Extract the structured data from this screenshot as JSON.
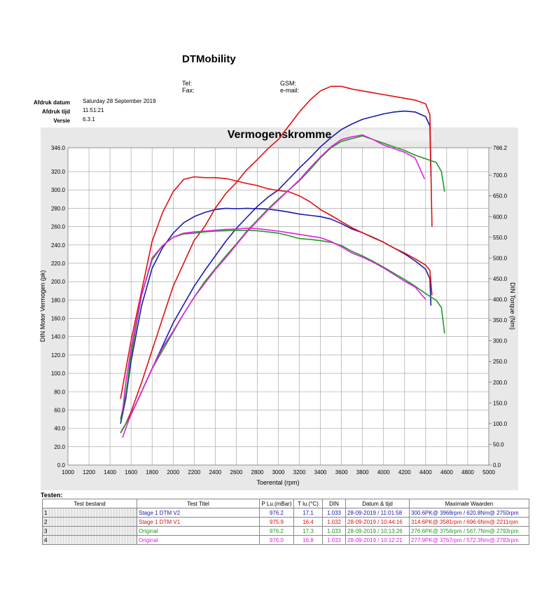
{
  "header": {
    "company": "DTMobility",
    "tel_label": "Tel:",
    "fax_label": "Fax:",
    "gsm_label": "GSM:",
    "email_label": "e-mail:"
  },
  "meta": {
    "print_date_label": "Afdruk datum",
    "print_date": "Saturday 28 September 2019",
    "print_time_label": "Afdruk tijd",
    "print_time": "11:51:21",
    "version_label": "Versie",
    "version": "6.3.1"
  },
  "chart_data": {
    "type": "line",
    "title": "Vermogenskromme",
    "xlabel": "Toerental (rpm)",
    "ylabel": "DIN Motor Vermogen (pk)",
    "y2label": "DIN Torque (Nm)",
    "xlim": [
      1000,
      5000
    ],
    "ylim": [
      0,
      346.0
    ],
    "y2lim": [
      0,
      766.2
    ],
    "x_ticks": [
      1000,
      1200,
      1400,
      1600,
      1800,
      2000,
      2200,
      2400,
      2600,
      2800,
      3000,
      3200,
      3400,
      3600,
      3800,
      4000,
      4200,
      4400,
      4600,
      4800,
      5000
    ],
    "y_ticks": [
      "0.0",
      "20.0",
      "40.0",
      "60.0",
      "80.0",
      "100.0",
      "120.0",
      "140.0",
      "160.0",
      "180.0",
      "200.0",
      "220.0",
      "240.0",
      "260.0",
      "280.0",
      "300.0",
      "320.0",
      "346.0"
    ],
    "y2_ticks": [
      "0.0",
      "50.0",
      "100.0",
      "150.0",
      "200.0",
      "250.0",
      "300.0",
      "350.0",
      "400.0",
      "450.0",
      "500.0",
      "550.0",
      "600.0",
      "650.0",
      "700.0",
      "766.2"
    ],
    "grid": true,
    "series": [
      {
        "run": "Stage 1 DTM V2",
        "kind": "power",
        "color": "#1a1aa8",
        "x": [
          1500,
          1550,
          1600,
          1700,
          1800,
          1900,
          2000,
          2100,
          2200,
          2300,
          2400,
          2500,
          2600,
          2700,
          2800,
          2900,
          3000,
          3100,
          3200,
          3300,
          3400,
          3500,
          3600,
          3700,
          3800,
          3900,
          4000,
          4100,
          4200,
          4300,
          4400,
          4440,
          4450
        ],
        "y": [
          35,
          45,
          55,
          80,
          105,
          130,
          155,
          175,
          195,
          212,
          228,
          244,
          258,
          270,
          282,
          292,
          300,
          312,
          324,
          335,
          347,
          357,
          366,
          372,
          377,
          380,
          383,
          385,
          386,
          385,
          380,
          370,
          315
        ]
      },
      {
        "run": "Stage 1 DTM V2",
        "kind": "torque",
        "color": "#1a1aa8",
        "x": [
          1500,
          1550,
          1600,
          1700,
          1800,
          1900,
          2000,
          2100,
          2200,
          2300,
          2400,
          2500,
          2600,
          2700,
          2800,
          2900,
          3000,
          3100,
          3200,
          3300,
          3400,
          3500,
          3600,
          3700,
          3800,
          3900,
          4000,
          4100,
          4200,
          4300,
          4400,
          4440,
          4450
        ],
        "y": [
          100,
          160,
          250,
          385,
          475,
          525,
          560,
          585,
          600,
          610,
          617,
          620,
          619,
          620,
          619,
          618,
          615,
          611,
          606,
          603,
          600,
          594,
          583,
          570,
          561,
          550,
          538,
          524,
          510,
          493,
          473,
          450,
          385
        ]
      },
      {
        "run": "Stage 1 DTM V1",
        "kind": "power",
        "color": "#e01010",
        "x": [
          1500,
          1550,
          1600,
          1700,
          1800,
          1900,
          2000,
          2100,
          2200,
          2300,
          2400,
          2500,
          2600,
          2700,
          2800,
          2900,
          3000,
          3100,
          3200,
          3300,
          3400,
          3500,
          3600,
          3700,
          3800,
          3900,
          4000,
          4100,
          4200,
          4300,
          4400,
          4440,
          4460
        ],
        "y": [
          35,
          45,
          58,
          90,
          125,
          160,
          195,
          220,
          245,
          260,
          280,
          296,
          308,
          322,
          333,
          345,
          355,
          370,
          385,
          398,
          408,
          413,
          413,
          410,
          408,
          406,
          404,
          402,
          400,
          398,
          394,
          382,
          260
        ]
      },
      {
        "run": "Stage 1 DTM V1",
        "kind": "torque",
        "color": "#e01010",
        "x": [
          1500,
          1550,
          1600,
          1700,
          1800,
          1900,
          2000,
          2100,
          2200,
          2300,
          2400,
          2500,
          2600,
          2700,
          2800,
          2900,
          3000,
          3100,
          3200,
          3300,
          3400,
          3500,
          3600,
          3700,
          3800,
          3900,
          4000,
          4100,
          4200,
          4300,
          4400,
          4440,
          4460
        ],
        "y": [
          160,
          230,
          300,
          420,
          540,
          610,
          660,
          690,
          696,
          694,
          694,
          692,
          686,
          680,
          675,
          667,
          663,
          660,
          650,
          636,
          617,
          603,
          588,
          573,
          561,
          549,
          538,
          524,
          512,
          498,
          483,
          470,
          410
        ]
      },
      {
        "run": "Original",
        "kind": "power",
        "color": "#1e9a1e",
        "x": [
          1500,
          1550,
          1600,
          1700,
          1800,
          1900,
          2000,
          2100,
          2200,
          2300,
          2400,
          2500,
          2600,
          2700,
          2800,
          2900,
          3000,
          3100,
          3200,
          3300,
          3400,
          3500,
          3600,
          3700,
          3800,
          3900,
          4000,
          4100,
          4200,
          4300,
          4400,
          4500,
          4550,
          4580
        ],
        "y": [
          35,
          45,
          55,
          80,
          105,
          125,
          145,
          165,
          183,
          200,
          214,
          228,
          241,
          255,
          267,
          279,
          290,
          300,
          310,
          322,
          335,
          346,
          353,
          356,
          359,
          355,
          351,
          347,
          343,
          338,
          334,
          330,
          320,
          298
        ]
      },
      {
        "run": "Original",
        "kind": "torque",
        "color": "#1e9a1e",
        "x": [
          1500,
          1550,
          1600,
          1700,
          1800,
          1900,
          2000,
          2100,
          2200,
          2300,
          2400,
          2500,
          2600,
          2700,
          2800,
          2900,
          3000,
          3100,
          3200,
          3300,
          3400,
          3500,
          3600,
          3700,
          3800,
          3900,
          4000,
          4100,
          4200,
          4300,
          4400,
          4500,
          4550,
          4580
        ],
        "y": [
          110,
          170,
          265,
          410,
          495,
          530,
          550,
          558,
          560,
          563,
          565,
          566,
          567,
          567,
          566,
          563,
          560,
          554,
          547,
          545,
          542,
          538,
          530,
          516,
          505,
          492,
          478,
          463,
          448,
          432,
          414,
          398,
          380,
          318
        ]
      },
      {
        "run": "Original",
        "kind": "power",
        "color": "#e020e0",
        "x": [
          1520,
          1550,
          1600,
          1700,
          1800,
          1900,
          2000,
          2100,
          2200,
          2300,
          2400,
          2500,
          2600,
          2700,
          2800,
          2900,
          3000,
          3100,
          3200,
          3300,
          3400,
          3500,
          3600,
          3700,
          3800,
          3900,
          4000,
          4100,
          4200,
          4300,
          4390
        ],
        "y": [
          30,
          40,
          55,
          80,
          105,
          128,
          146,
          165,
          183,
          198,
          213,
          226,
          240,
          254,
          266,
          278,
          289,
          300,
          311,
          324,
          336,
          347,
          355,
          358,
          360,
          355,
          349,
          345,
          341,
          335,
          312
        ]
      },
      {
        "run": "Original",
        "kind": "torque",
        "color": "#e020e0",
        "x": [
          1520,
          1550,
          1600,
          1700,
          1800,
          1900,
          2000,
          2100,
          2200,
          2300,
          2400,
          2500,
          2600,
          2700,
          2800,
          2900,
          3000,
          3100,
          3200,
          3300,
          3400,
          3500,
          3600,
          3700,
          3800,
          3900,
          4000,
          4100,
          4200,
          4300,
          4400
        ],
        "y": [
          130,
          200,
          280,
          410,
          500,
          530,
          550,
          560,
          563,
          565,
          567,
          569,
          570,
          572,
          571,
          568,
          565,
          561,
          557,
          553,
          549,
          540,
          527,
          512,
          502,
          490,
          476,
          460,
          444,
          430,
          400
        ]
      }
    ]
  },
  "table": {
    "title": "Testen:",
    "headers": [
      "Test bestand",
      "Test Titel",
      "P Lu.(mBar)",
      "T lu.(°C)",
      "DIN",
      "Datum & tijd",
      "Maximale Waarden"
    ],
    "rows": [
      {
        "num": "1",
        "title": "Stage 1 DTM V2",
        "pressure": "976.2",
        "temp": "17.1",
        "din": "1.033",
        "datetime": "28-09-2019 / 11:01:58",
        "max": "300.6PK@ 3968rpm / 620.8Nm@ 2750rpm",
        "color": "#1a1aa8"
      },
      {
        "num": "2",
        "title": "Stage 1 DTM V1",
        "pressure": "975.9",
        "temp": "16.4",
        "din": "1.032",
        "datetime": "28-09-2019 / 10:44:16",
        "max": "314.6PK@ 3581rpm / 696.6Nm@ 2211rpm",
        "color": "#e01010"
      },
      {
        "num": "3",
        "title": "Original",
        "pressure": "976.2",
        "temp": "17.3",
        "din": "1.033",
        "datetime": "28-09-2019 / 10:13:26",
        "max": "276.6PK@ 3756rpm / 567.7Nm@ 2793rpm",
        "color": "#1e9a1e"
      },
      {
        "num": "4",
        "title": "Original",
        "pressure": "976.0",
        "temp": "16.8",
        "din": "1.033",
        "datetime": "28-09-2019 / 10:12:21",
        "max": "277.9PK@ 3767rpm / 572.3Nm@ 2783rpm",
        "color": "#e020e0"
      }
    ]
  }
}
